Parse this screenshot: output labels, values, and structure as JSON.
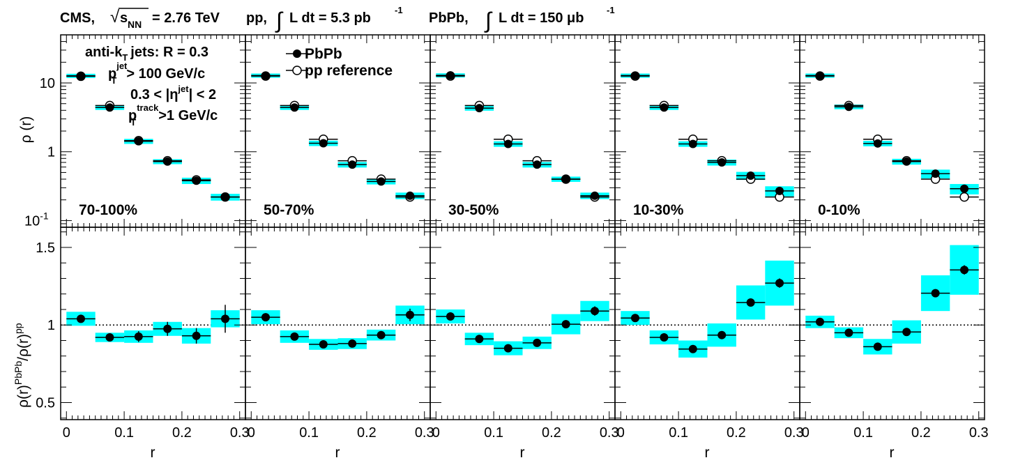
{
  "header": {
    "experiment": "CMS,",
    "sqrt_symbol": "√",
    "s_main": "s",
    "s_sub": "NN",
    "energy": "= 2.76 TeV",
    "pp_label": "pp,",
    "integral": "∫",
    "pp_lumi_prefix": "L dt = 5.3 pb",
    "pp_lumi_exp": "-1",
    "pbpb_label": "PbPb,",
    "pbpb_lumi_prefix": "L dt = 150 μb",
    "pbpb_lumi_exp": "-1"
  },
  "legend": {
    "line1": "anti-k",
    "line1_sub": "T",
    "line1_rest": "jets: R = 0.3",
    "line2_p": "p",
    "line2_sup": "jet",
    "line2_sub": "T",
    "line2_rest": "> 100 GeV/c",
    "line3_pre": "0.3 < |η",
    "line3_sup": "jet",
    "line3_post": "| < 2",
    "line4_p": "p",
    "line4_sup": "track",
    "line4_sub": "T",
    "line4_rest": ">1 GeV/c",
    "pbpb": "PbPb",
    "pp": "pp reference"
  },
  "colors": {
    "syst_box": "#00ffff",
    "marker": "#000000",
    "background": "#ffffff"
  },
  "chart_data": [
    {
      "type": "scatter",
      "description_role": "top row: differential jet shape",
      "ylabel": "ρ (r)",
      "yscale": "log",
      "ylim": [
        0.08,
        50
      ],
      "xlim": [
        -0.01,
        0.31
      ],
      "yticks": [
        {
          "value": 10,
          "label": "10",
          "exp": ""
        },
        {
          "value": 1,
          "label": "1",
          "exp": ""
        },
        {
          "value": 0.1,
          "label": "10",
          "exp": "-1"
        }
      ],
      "x": [
        0.025,
        0.075,
        0.125,
        0.175,
        0.225,
        0.275
      ],
      "panels": [
        {
          "centrality": "70-100%",
          "pbpb": [
            12.7,
            4.4,
            1.42,
            0.72,
            0.38,
            0.22
          ],
          "pbpb_syst": [
            0.9,
            0.35,
            0.12,
            0.06,
            0.04,
            0.025
          ],
          "pp": [
            12.5,
            4.7,
            1.45,
            0.74,
            0.39,
            0.22
          ]
        },
        {
          "centrality": "50-70%",
          "pbpb": [
            12.8,
            4.4,
            1.33,
            0.65,
            0.37,
            0.23
          ],
          "pbpb_syst": [
            0.9,
            0.35,
            0.12,
            0.06,
            0.035,
            0.025
          ],
          "pp": [
            12.6,
            4.7,
            1.52,
            0.74,
            0.4,
            0.22
          ]
        },
        {
          "centrality": "30-50%",
          "pbpb": [
            12.9,
            4.3,
            1.3,
            0.65,
            0.4,
            0.23
          ],
          "pbpb_syst": [
            0.9,
            0.35,
            0.12,
            0.06,
            0.035,
            0.025
          ],
          "pp": [
            12.6,
            4.7,
            1.52,
            0.74,
            0.4,
            0.22
          ]
        },
        {
          "centrality": "10-30%",
          "pbpb": [
            12.8,
            4.4,
            1.3,
            0.7,
            0.45,
            0.27
          ],
          "pbpb_syst": [
            0.9,
            0.35,
            0.12,
            0.07,
            0.06,
            0.045
          ],
          "pp": [
            12.6,
            4.7,
            1.52,
            0.74,
            0.4,
            0.22
          ]
        },
        {
          "centrality": "0-10%",
          "pbpb": [
            12.8,
            4.5,
            1.32,
            0.72,
            0.48,
            0.29
          ],
          "pbpb_syst": [
            0.9,
            0.35,
            0.12,
            0.07,
            0.07,
            0.05
          ],
          "pp": [
            12.6,
            4.7,
            1.52,
            0.74,
            0.4,
            0.22
          ]
        }
      ]
    },
    {
      "type": "scatter",
      "description_role": "bottom row: PbPb/pp ratio",
      "ylabel": "ρ(r)^PbPb/ρ(r)^pp",
      "ylabel_main1": "ρ(r)",
      "ylabel_sup1": "PbPb",
      "ylabel_main2": "/ρ(r)",
      "ylabel_sup2": "pp",
      "xlabel": "r",
      "xlim": [
        -0.01,
        0.31
      ],
      "ylim": [
        0.39,
        1.63
      ],
      "yticks": [
        0.5,
        1,
        1.5
      ],
      "ytick_labels": [
        "0.5",
        "1",
        "1.5"
      ],
      "xticks": [
        0,
        0.1,
        0.2,
        0.3
      ],
      "xtick_labels": [
        "0",
        "0.1",
        "0.2",
        "0.3"
      ],
      "reference_line": 1,
      "x": [
        0.025,
        0.075,
        0.125,
        0.175,
        0.225,
        0.275
      ],
      "panels": [
        {
          "centrality": "70-100%",
          "ratio": [
            1.04,
            0.92,
            0.925,
            0.975,
            0.93,
            1.04
          ],
          "syst": [
            0.045,
            0.03,
            0.04,
            0.045,
            0.05,
            0.055
          ],
          "stat": [
            0.01,
            0.025,
            0.035,
            0.045,
            0.05,
            0.09
          ]
        },
        {
          "centrality": "50-70%",
          "ratio": [
            1.05,
            0.925,
            0.875,
            0.88,
            0.935,
            1.065
          ],
          "syst": [
            0.045,
            0.04,
            0.035,
            0.035,
            0.035,
            0.06
          ],
          "stat": [
            0.008,
            0.012,
            0.012,
            0.015,
            0.015,
            0.04
          ]
        },
        {
          "centrality": "30-50%",
          "ratio": [
            1.055,
            0.91,
            0.85,
            0.885,
            1.005,
            1.09
          ],
          "syst": [
            0.045,
            0.04,
            0.045,
            0.04,
            0.065,
            0.065
          ],
          "stat": [
            0.008,
            0.01,
            0.012,
            0.012,
            0.015,
            0.03
          ]
        },
        {
          "centrality": "10-30%",
          "ratio": [
            1.045,
            0.92,
            0.845,
            0.935,
            1.145,
            1.27
          ],
          "syst": [
            0.045,
            0.045,
            0.055,
            0.075,
            0.11,
            0.145
          ],
          "stat": [
            0.008,
            0.01,
            0.012,
            0.015,
            0.015,
            0.03
          ]
        },
        {
          "centrality": "0-10%",
          "ratio": [
            1.02,
            0.95,
            0.86,
            0.955,
            1.205,
            1.355
          ],
          "syst": [
            0.04,
            0.035,
            0.05,
            0.075,
            0.115,
            0.16
          ],
          "stat": [
            0.008,
            0.01,
            0.012,
            0.015,
            0.015,
            0.03
          ]
        }
      ]
    }
  ]
}
